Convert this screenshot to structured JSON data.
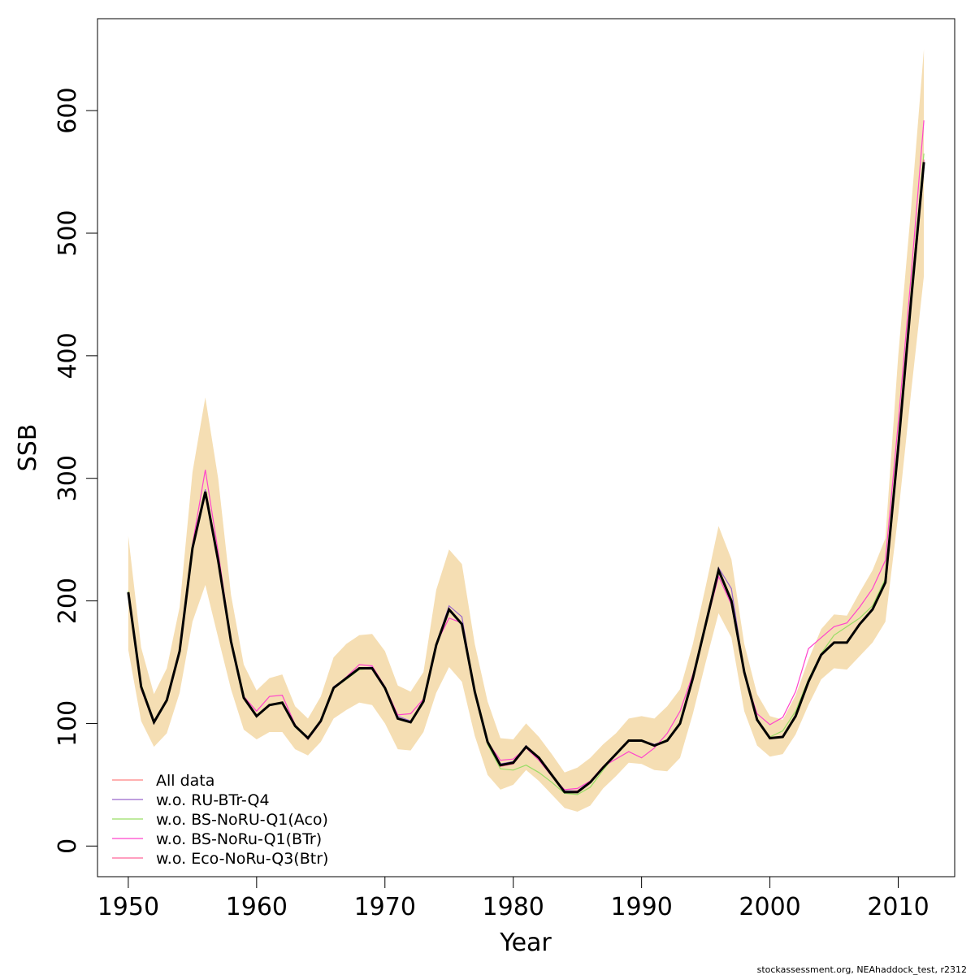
{
  "chart_data": {
    "type": "line",
    "xlabel": "Year",
    "ylabel": "SSB",
    "xlim": [
      1947.6,
      2014.4
    ],
    "ylim": [
      -25,
      675
    ],
    "xticks": [
      1950,
      1960,
      1970,
      1980,
      1990,
      2000,
      2010
    ],
    "yticks": [
      0,
      100,
      200,
      300,
      400,
      500,
      600
    ],
    "grid": false,
    "legend_position": "bottom-left",
    "x": [
      1950,
      1951,
      1952,
      1953,
      1954,
      1955,
      1956,
      1957,
      1958,
      1959,
      1960,
      1961,
      1962,
      1963,
      1964,
      1965,
      1966,
      1967,
      1968,
      1969,
      1970,
      1971,
      1972,
      1973,
      1974,
      1975,
      1976,
      1977,
      1978,
      1979,
      1980,
      1981,
      1982,
      1983,
      1984,
      1985,
      1986,
      1987,
      1988,
      1989,
      1990,
      1991,
      1992,
      1993,
      1994,
      1995,
      1996,
      1997,
      1998,
      1999,
      2000,
      2001,
      2002,
      2003,
      2004,
      2005,
      2006,
      2007,
      2008,
      2009,
      2010,
      2011,
      2012
    ],
    "band": {
      "color": "#f5deb3",
      "lower": [
        160,
        102,
        81,
        92,
        125,
        183,
        213,
        170,
        128,
        95,
        87,
        93,
        93,
        79,
        74,
        85,
        104,
        111,
        117,
        115,
        100,
        79,
        78,
        93,
        125,
        146,
        134,
        90,
        58,
        46,
        50,
        62,
        53,
        42,
        31,
        28,
        33,
        47,
        57,
        68,
        67,
        62,
        61,
        72,
        108,
        150,
        190,
        170,
        110,
        82,
        73,
        75,
        91,
        115,
        136,
        145,
        144,
        155,
        166,
        183,
        270,
        370,
        465
      ],
      "upper": [
        253,
        162,
        124,
        145,
        195,
        305,
        366,
        300,
        205,
        148,
        127,
        137,
        140,
        114,
        104,
        122,
        154,
        165,
        172,
        173,
        159,
        131,
        126,
        142,
        209,
        242,
        230,
        165,
        118,
        88,
        87,
        100,
        89,
        75,
        60,
        64,
        72,
        83,
        92,
        104,
        106,
        104,
        114,
        128,
        165,
        212,
        261,
        234,
        165,
        124,
        106,
        103,
        123,
        152,
        177,
        189,
        188,
        207,
        225,
        251,
        400,
        520,
        650
      ]
    },
    "series": [
      {
        "name": "All data",
        "color": "#ff8080",
        "values": [
          208,
          130,
          101,
          119,
          158,
          243,
          288,
          233,
          166,
          121,
          106,
          115,
          117,
          98,
          88,
          102,
          129,
          137,
          145,
          145,
          129,
          104,
          101,
          118,
          163,
          193,
          181,
          126,
          85,
          65,
          67,
          80,
          72,
          58,
          44,
          45,
          52,
          64,
          75,
          86,
          86,
          82,
          86,
          100,
          137,
          181,
          225,
          200,
          142,
          103,
          88,
          89,
          106,
          134,
          156,
          166,
          166,
          181,
          193,
          215,
          325,
          445,
          558
        ]
      },
      {
        "name": "w.o. RU-BTr-Q4",
        "color": "#9966cc",
        "values": [
          206,
          130,
          102,
          119,
          160,
          243,
          291,
          233,
          168,
          122,
          106,
          115,
          117,
          98,
          89,
          102,
          130,
          137,
          145,
          146,
          129,
          106,
          102,
          118,
          165,
          196,
          187,
          126,
          85,
          67,
          69,
          82,
          72,
          58,
          45,
          45,
          53,
          64,
          75,
          86,
          86,
          83,
          86,
          100,
          138,
          181,
          227,
          210,
          142,
          103,
          88,
          89,
          106,
          134,
          156,
          166,
          166,
          181,
          194,
          215,
          325,
          445,
          560
        ]
      },
      {
        "name": "w.o. BS-NoRU-Q1(Aco)",
        "color": "#99dd66",
        "values": [
          208,
          132,
          102,
          119,
          159,
          242,
          288,
          234,
          166,
          120,
          106,
          115,
          116,
          97,
          88,
          102,
          129,
          136,
          144,
          145,
          128,
          104,
          101,
          118,
          164,
          193,
          180,
          124,
          83,
          63,
          62,
          66,
          60,
          52,
          43,
          42,
          48,
          62,
          75,
          86,
          86,
          82,
          87,
          100,
          137,
          181,
          225,
          200,
          142,
          103,
          89,
          94,
          110,
          136,
          157,
          172,
          179,
          186,
          196,
          218,
          330,
          450,
          565
        ]
      },
      {
        "name": "w.o. BS-NoRu-Q1(BTr)",
        "color": "#ff44cc",
        "values": [
          206,
          128,
          100,
          119,
          160,
          246,
          307,
          240,
          168,
          122,
          110,
          122,
          123,
          99,
          87,
          101,
          129,
          138,
          148,
          147,
          130,
          107,
          108,
          120,
          165,
          186,
          182,
          126,
          85,
          70,
          71,
          80,
          70,
          57,
          46,
          47,
          53,
          65,
          71,
          77,
          72,
          80,
          92,
          110,
          140,
          180,
          220,
          197,
          140,
          108,
          99,
          105,
          126,
          161,
          170,
          179,
          182,
          195,
          210,
          233,
          345,
          465,
          592
        ]
      },
      {
        "name": "w.o. Eco-NoRu-Q3(Btr)",
        "color": "#ff6699",
        "values": [
          207,
          130,
          101,
          118,
          159,
          243,
          289,
          233,
          167,
          121,
          106,
          115,
          117,
          98,
          88,
          102,
          129,
          137,
          145,
          145,
          129,
          104,
          101,
          118,
          163,
          192,
          181,
          126,
          85,
          65,
          67,
          80,
          72,
          58,
          44,
          45,
          52,
          64,
          75,
          86,
          86,
          82,
          86,
          100,
          137,
          181,
          225,
          200,
          142,
          103,
          88,
          89,
          106,
          134,
          156,
          166,
          166,
          181,
          193,
          215,
          328,
          448,
          560
        ]
      }
    ],
    "main_line": {
      "color": "#000000",
      "values": [
        207,
        130,
        101,
        119,
        159,
        243,
        289,
        233,
        167,
        121,
        106,
        115,
        117,
        98,
        88,
        102,
        129,
        137,
        145,
        145,
        129,
        104,
        101,
        118,
        164,
        193,
        181,
        126,
        85,
        66,
        68,
        81,
        72,
        58,
        44,
        44,
        52,
        64,
        75,
        86,
        86,
        82,
        86,
        100,
        137,
        181,
        225,
        200,
        142,
        103,
        88,
        89,
        106,
        134,
        156,
        166,
        166,
        181,
        193,
        215,
        325,
        445,
        558
      ]
    }
  },
  "footer": "stockassessment.org, NEAhaddock_test, r2312"
}
